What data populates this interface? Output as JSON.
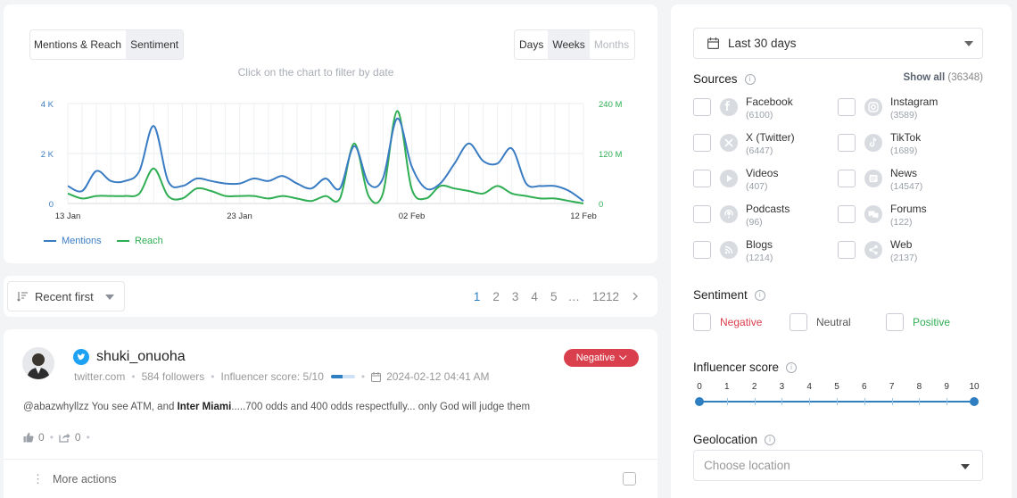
{
  "chart_card": {
    "metric_tabs": [
      "Mentions & Reach",
      "Sentiment"
    ],
    "period_tabs": [
      "Days",
      "Weeks",
      "Months"
    ],
    "hint": "Click on the chart to filter by date"
  },
  "chart_data": {
    "type": "line",
    "x_tick_labels": [
      "13 Jan",
      "23 Jan",
      "02 Feb",
      "12 Feb"
    ],
    "left_axis": {
      "ticks": [
        "0",
        "2 K",
        "4 K"
      ],
      "ylim": [
        0,
        4000
      ]
    },
    "right_axis": {
      "ticks": [
        "0",
        "120 M",
        "240 M"
      ],
      "ylim": [
        0,
        240
      ]
    },
    "legend": "bottom-left",
    "colors": {
      "Mentions": "#3a7cc3",
      "Reach": "#2fae53"
    },
    "series": [
      {
        "name": "Mentions",
        "axis": "left",
        "values": [
          700,
          500,
          1300,
          900,
          900,
          1300,
          3100,
          900,
          700,
          1000,
          900,
          800,
          800,
          1000,
          900,
          1100,
          800,
          600,
          1000,
          600,
          2300,
          800,
          1000,
          3400,
          1500,
          600,
          800,
          1600,
          2400,
          1700,
          1600,
          2200,
          800,
          700,
          700,
          500,
          100
        ]
      },
      {
        "name": "Reach",
        "axis": "left",
        "values": [
          400,
          200,
          300,
          300,
          300,
          400,
          1400,
          300,
          200,
          600,
          500,
          300,
          300,
          300,
          200,
          300,
          200,
          100,
          300,
          200,
          2400,
          300,
          400,
          3700,
          600,
          200,
          700,
          600,
          500,
          400,
          700,
          400,
          300,
          200,
          200,
          100,
          0
        ]
      }
    ]
  },
  "toolbar": {
    "sort_label": "Recent first",
    "pages": [
      "1",
      "2",
      "3",
      "4",
      "5",
      "…",
      "1212"
    ]
  },
  "post": {
    "author": "shuki_onuoha",
    "source": "twitter.com",
    "followers": "584 followers",
    "influencer_score": "Influencer score: 5/10",
    "score_value": 0.5,
    "date": "2024-02-12 04:41 AM",
    "sentiment": "Negative",
    "text_before": "@abazwhyllzz You see ATM, and ",
    "text_bold": "Inter Miami",
    "text_after": ".....700 odds and 400 odds respectfully... only God will judge them",
    "likes": "0",
    "shares": "0",
    "more_actions": "More actions"
  },
  "filters": {
    "date_range": "Last 30 days",
    "sources_title": "Sources",
    "show_all": "Show all",
    "show_all_count": "(36348)",
    "sources": [
      {
        "name": "Facebook",
        "count": "(6100)",
        "icon": "facebook-icon"
      },
      {
        "name": "Instagram",
        "count": "(3589)",
        "icon": "instagram-icon"
      },
      {
        "name": "X (Twitter)",
        "count": "(6447)",
        "icon": "x-twitter-icon"
      },
      {
        "name": "TikTok",
        "count": "(1689)",
        "icon": "tiktok-icon"
      },
      {
        "name": "Videos",
        "count": "(407)",
        "icon": "video-play-icon"
      },
      {
        "name": "News",
        "count": "(14547)",
        "icon": "news-icon"
      },
      {
        "name": "Podcasts",
        "count": "(96)",
        "icon": "podcast-icon"
      },
      {
        "name": "Forums",
        "count": "(122)",
        "icon": "forums-icon"
      },
      {
        "name": "Blogs",
        "count": "(1214)",
        "icon": "rss-icon"
      },
      {
        "name": "Web",
        "count": "(2137)",
        "icon": "share-web-icon"
      }
    ],
    "sentiment_title": "Sentiment",
    "sentiment_options": [
      {
        "label": "Negative",
        "color": "#d93f4c"
      },
      {
        "label": "Neutral",
        "color": "#555555"
      },
      {
        "label": "Positive",
        "color": "#2fae53"
      }
    ],
    "influencer_title": "Influencer score",
    "influencer_ticks": [
      "0",
      "1",
      "2",
      "3",
      "4",
      "5",
      "6",
      "7",
      "8",
      "9",
      "10"
    ],
    "influencer_range": [
      0,
      10
    ],
    "geo_title": "Geolocation",
    "geo_placeholder": "Choose location"
  }
}
